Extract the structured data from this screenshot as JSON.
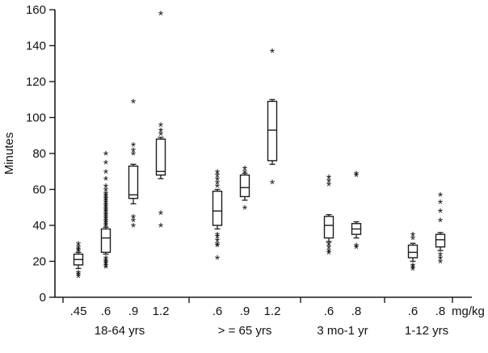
{
  "chart_data": {
    "type": "boxplot",
    "title": "",
    "ylabel": "Minutes",
    "x_unit_label": "mg/kg",
    "ylim": [
      0,
      160
    ],
    "yticks": [
      0,
      20,
      40,
      60,
      80,
      100,
      120,
      140,
      160
    ],
    "grid": false,
    "legend": "none",
    "line_color": "#1c1c1c",
    "box_fill": "#ffffff",
    "groups": [
      {
        "label": "18-64 yrs",
        "boxes": [
          {
            "dose": ".45",
            "q1": 18,
            "median": 21,
            "q3": 24,
            "wlow": 16,
            "whigh": 25,
            "outliers_above": [
              30,
              28,
              27,
              26
            ],
            "outliers_below": [
              14,
              13,
              12
            ]
          },
          {
            "dose": ".6",
            "q1": 25,
            "median": 33,
            "q3": 38,
            "wlow": 24,
            "whigh": 39,
            "outliers_above": [
              80,
              75,
              70,
              66,
              62,
              60,
              58,
              57,
              56,
              55,
              54,
              53,
              52,
              51,
              50,
              49,
              48,
              47,
              46,
              45,
              44,
              43,
              42,
              41,
              40
            ],
            "outliers_below": [
              22,
              21,
              20,
              19,
              18,
              17
            ]
          },
          {
            "dose": ".9",
            "q1": 55,
            "median": 57,
            "q3": 73,
            "wlow": 52,
            "whigh": 74,
            "outliers_above": [
              109,
              85,
              82,
              80
            ],
            "outliers_below": [
              45,
              43,
              40
            ]
          },
          {
            "dose": "1.2",
            "q1": 68,
            "median": 70,
            "q3": 88,
            "wlow": 66,
            "whigh": 89,
            "outliers_above": [
              158,
              96,
              93,
              91
            ],
            "outliers_below": [
              47,
              40
            ]
          }
        ]
      },
      {
        "label": "> = 65 yrs",
        "boxes": [
          {
            "dose": ".6",
            "q1": 40,
            "median": 48,
            "q3": 59,
            "wlow": 38,
            "whigh": 60,
            "outliers_above": [
              70,
              68,
              66,
              64,
              62
            ],
            "outliers_below": [
              35,
              34,
              32,
              30,
              29,
              22
            ]
          },
          {
            "dose": ".9",
            "q1": 56,
            "median": 61,
            "q3": 68,
            "wlow": 54,
            "whigh": 69,
            "outliers_above": [
              72,
              70
            ],
            "outliers_below": [
              50
            ]
          },
          {
            "dose": "1.2",
            "q1": 76,
            "median": 93,
            "q3": 109,
            "wlow": 74,
            "whigh": 110,
            "outliers_above": [
              137
            ],
            "outliers_below": [
              64
            ]
          }
        ]
      },
      {
        "label": "3 mo-1 yr",
        "boxes": [
          {
            "dose": ".6",
            "q1": 33,
            "median": 40,
            "q3": 45,
            "wlow": 31,
            "whigh": 46,
            "outliers_above": [
              67,
              65,
              63
            ],
            "outliers_below": [
              30,
              28,
              26,
              25
            ]
          },
          {
            "dose": ".8",
            "q1": 35,
            "median": 38,
            "q3": 41,
            "wlow": 33,
            "whigh": 42,
            "outliers_above": [
              69,
              68
            ],
            "outliers_below": [
              29,
              28
            ]
          }
        ]
      },
      {
        "label": "1-12 yrs",
        "boxes": [
          {
            "dose": ".6",
            "q1": 22,
            "median": 25,
            "q3": 29,
            "wlow": 20,
            "whigh": 30,
            "outliers_above": [
              35,
              33
            ],
            "outliers_below": [
              18,
              17,
              16
            ]
          },
          {
            "dose": ".8",
            "q1": 28,
            "median": 32,
            "q3": 35,
            "wlow": 26,
            "whigh": 36,
            "outliers_above": [
              57,
              53,
              48,
              43
            ],
            "outliers_below": [
              24,
              22,
              20
            ]
          }
        ]
      }
    ]
  }
}
